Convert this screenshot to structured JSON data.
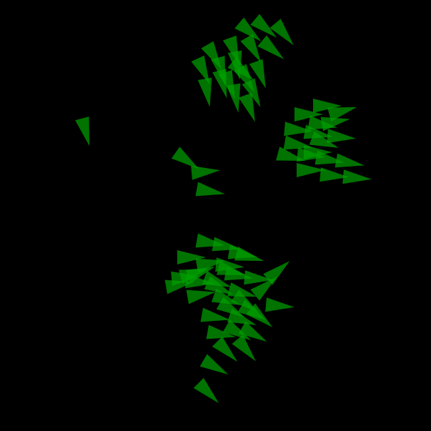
{
  "scene": {
    "background_color": "#000000",
    "agent_color": "#00a000",
    "agent_opacity": 0.72,
    "agent_shape": "triangle",
    "agent_count": 93,
    "flock_count": 4
  }
}
